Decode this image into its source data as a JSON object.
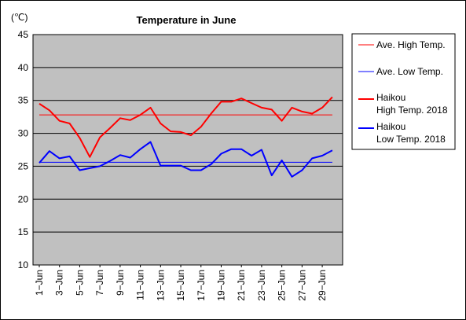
{
  "chart_data": {
    "type": "line",
    "title": "Temperature in June",
    "ylabel": "(℃)",
    "xlabel": "",
    "ylim": [
      10,
      45
    ],
    "yticks": [
      10,
      15,
      20,
      25,
      30,
      35,
      40,
      45
    ],
    "grid": true,
    "legend_position": "right",
    "x": [
      1,
      2,
      3,
      4,
      5,
      6,
      7,
      8,
      9,
      10,
      11,
      12,
      13,
      14,
      15,
      16,
      17,
      18,
      19,
      20,
      21,
      22,
      23,
      24,
      25,
      26,
      27,
      28,
      29,
      30
    ],
    "x_tick_labels": [
      "1−Jun",
      "3−Jun",
      "5−Jun",
      "7−Jun",
      "9−Jun",
      "11−Jun",
      "13−Jun",
      "15−Jun",
      "17−Jun",
      "19−Jun",
      "21−Jun",
      "23−Jun",
      "25−Jun",
      "27−Jun",
      "29−Jun"
    ],
    "x_tick_days": [
      1,
      3,
      5,
      7,
      9,
      11,
      13,
      15,
      17,
      19,
      21,
      23,
      25,
      27,
      29
    ],
    "series": [
      {
        "name": "Ave. High Temp.",
        "color": "#ff0000",
        "style": "thin",
        "values": [
          32.8,
          32.8,
          32.8,
          32.8,
          32.8,
          32.8,
          32.8,
          32.8,
          32.8,
          32.8,
          32.8,
          32.8,
          32.8,
          32.8,
          32.8,
          32.8,
          32.8,
          32.8,
          32.8,
          32.8,
          32.8,
          32.8,
          32.8,
          32.8,
          32.8,
          32.8,
          32.8,
          32.8,
          32.8,
          32.8
        ]
      },
      {
        "name": "Ave. Low Temp.",
        "color": "#0000ff",
        "style": "thin",
        "values": [
          25.6,
          25.6,
          25.6,
          25.6,
          25.6,
          25.6,
          25.6,
          25.6,
          25.6,
          25.6,
          25.6,
          25.6,
          25.6,
          25.6,
          25.6,
          25.6,
          25.6,
          25.6,
          25.6,
          25.6,
          25.6,
          25.6,
          25.6,
          25.6,
          25.6,
          25.6,
          25.6,
          25.6,
          25.6,
          25.6
        ]
      },
      {
        "name": "Haikou",
        "name_line2": "High Temp. 2018",
        "color": "#ff0000",
        "style": "thick",
        "values": [
          34.5,
          33.5,
          31.9,
          31.5,
          29.3,
          26.4,
          29.4,
          30.8,
          32.3,
          32.0,
          32.8,
          33.9,
          31.5,
          30.3,
          30.2,
          29.7,
          31.0,
          33.0,
          34.8,
          34.8,
          35.3,
          34.6,
          33.9,
          33.6,
          31.9,
          33.9,
          33.3,
          33.0,
          33.9,
          35.5
        ]
      },
      {
        "name": "Haikou",
        "name_line2": "Low Temp. 2018",
        "color": "#0000ff",
        "style": "thick",
        "values": [
          25.5,
          27.3,
          26.2,
          26.5,
          24.4,
          24.7,
          25.0,
          25.8,
          26.7,
          26.3,
          27.6,
          28.7,
          25.1,
          25.1,
          25.1,
          24.4,
          24.4,
          25.3,
          26.9,
          27.6,
          27.6,
          26.6,
          27.5,
          23.6,
          25.9,
          23.4,
          24.4,
          26.2,
          26.6,
          27.4
        ]
      }
    ]
  }
}
